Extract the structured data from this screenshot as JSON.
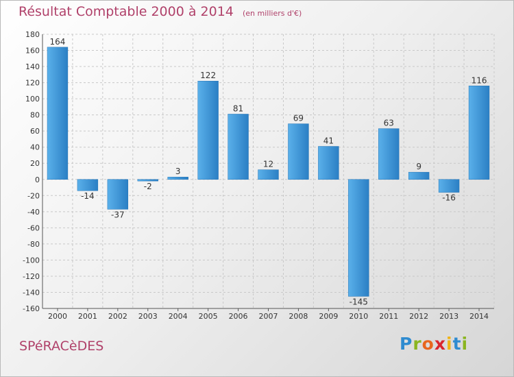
{
  "header": {
    "title": "Résultat Comptable 2000 à 2014",
    "subtitle": "(en milliers d'€)"
  },
  "footer": {
    "commune": "SPéRACèDES",
    "brand_letters": [
      "P",
      "r",
      "o",
      "x",
      "i",
      "t",
      "i"
    ],
    "brand_colors": [
      "#2e8bd0",
      "#8ab520",
      "#e8661e",
      "#d9262e",
      "#f0b417",
      "#2e8bd0",
      "#8ab520"
    ]
  },
  "chart_data": {
    "type": "bar",
    "categories": [
      "2000",
      "2001",
      "2002",
      "2003",
      "2004",
      "2005",
      "2006",
      "2007",
      "2008",
      "2009",
      "2010",
      "2011",
      "2012",
      "2013",
      "2014"
    ],
    "values": [
      164,
      -14,
      -37,
      -2,
      3,
      122,
      81,
      12,
      69,
      41,
      -145,
      63,
      9,
      -16,
      116
    ],
    "data_labels": [
      "164",
      "-14",
      "-37",
      "-2",
      "3",
      "122",
      "81",
      "12",
      "69",
      "41",
      "-145",
      "63",
      "9",
      "-16",
      "116"
    ],
    "y_ticks": [
      180,
      160,
      140,
      120,
      100,
      80,
      60,
      40,
      20,
      0,
      -20,
      -40,
      -60,
      -80,
      -100,
      -120,
      -140,
      -160
    ],
    "ylim": [
      -160,
      180
    ],
    "grid": true,
    "bar_color": "#2b7fc4",
    "bar_color_light": "#5ab0ea"
  }
}
